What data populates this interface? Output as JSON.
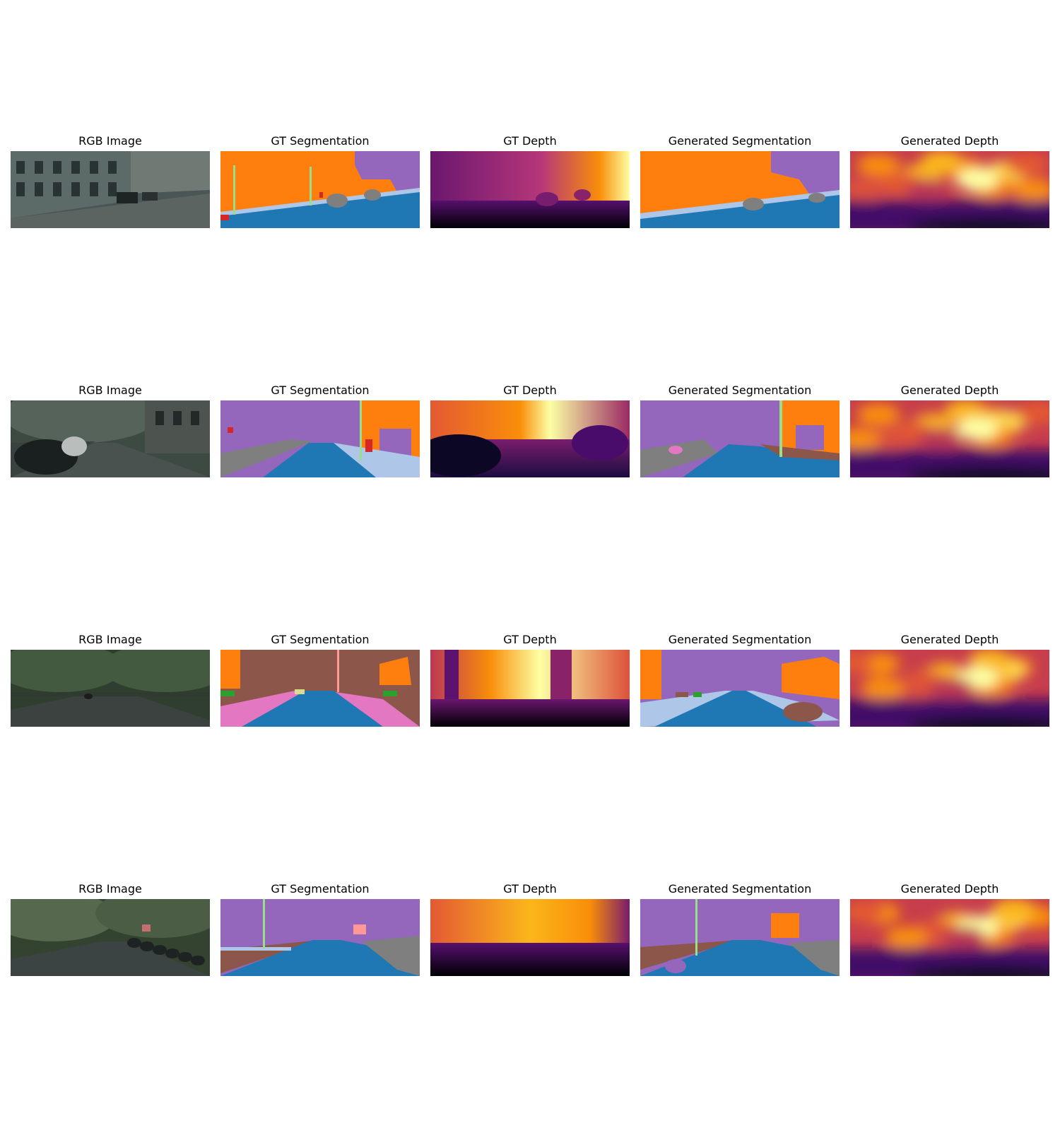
{
  "figure": {
    "columns": [
      "RGB Image",
      "GT Segmentation",
      "GT Depth",
      "Generated Segmentation",
      "Generated Depth"
    ],
    "rows": [
      {
        "scene": "street with building facades and parked cars"
      },
      {
        "scene": "residential street with cars and trees"
      },
      {
        "scene": "tree-lined avenue"
      },
      {
        "scene": "tree-lined street with parked cars"
      }
    ]
  },
  "colors": {
    "road": "#1f77b4",
    "building": "#ff7f0e",
    "vegetation": "#9467bd",
    "car": "#7f7f7f",
    "sidewalk": "#aec7e8",
    "terrain": "#8c564b",
    "pink_region": "#e377c2",
    "pole": "#98df8a",
    "sign": "#d62728",
    "light": "#ff9896",
    "green": "#2ca02c",
    "yellow": "#dbdb8d",
    "depth_far": "#fcffa4",
    "depth_mid": "#f98e09",
    "depth_near": "#57106e",
    "depth_nearest": "#000004"
  }
}
